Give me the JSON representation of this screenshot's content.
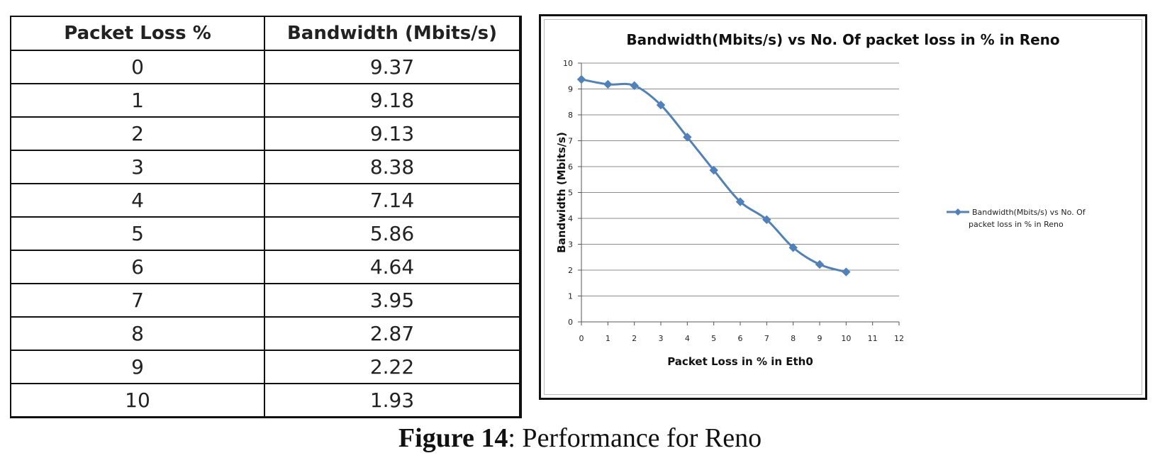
{
  "table": {
    "headers": [
      "Packet Loss %",
      "Bandwidth (Mbits/s)"
    ],
    "rows": [
      [
        "0",
        "9.37"
      ],
      [
        "1",
        "9.18"
      ],
      [
        "2",
        "9.13"
      ],
      [
        "3",
        "8.38"
      ],
      [
        "4",
        "7.14"
      ],
      [
        "5",
        "5.86"
      ],
      [
        "6",
        "4.64"
      ],
      [
        "7",
        "3.95"
      ],
      [
        "8",
        "2.87"
      ],
      [
        "9",
        "2.22"
      ],
      [
        "10",
        "1.93"
      ]
    ]
  },
  "chart_data": {
    "type": "line",
    "title": "Bandwidth(Mbits/s) vs No. Of packet loss in % in Reno",
    "xlabel": "Packet Loss in % in Eth0",
    "ylabel": "Bandwidth (Mbits/s)",
    "xlim": [
      0,
      12
    ],
    "ylim": [
      0,
      10
    ],
    "x_ticks": [
      0,
      1,
      2,
      3,
      4,
      5,
      6,
      7,
      8,
      9,
      10,
      11,
      12
    ],
    "y_ticks": [
      0,
      1,
      2,
      3,
      4,
      5,
      6,
      7,
      8,
      9,
      10
    ],
    "grid": "horizontal",
    "legend_position": "right",
    "series": [
      {
        "name": "Bandwidth(Mbits/s)  vs No. Of packet loss in % in Reno",
        "legend_lines": [
          "Bandwidth(Mbits/s)  vs No. Of",
          "packet loss in % in Reno"
        ],
        "color": "#4F81BD",
        "x": [
          0,
          1,
          2,
          3,
          4,
          5,
          6,
          7,
          8,
          9,
          10
        ],
        "values": [
          9.37,
          9.18,
          9.13,
          8.38,
          7.14,
          5.86,
          4.64,
          3.95,
          2.87,
          2.22,
          1.93
        ]
      }
    ]
  },
  "caption": {
    "label": "Figure 14",
    "text": ": Performance  for Reno"
  }
}
